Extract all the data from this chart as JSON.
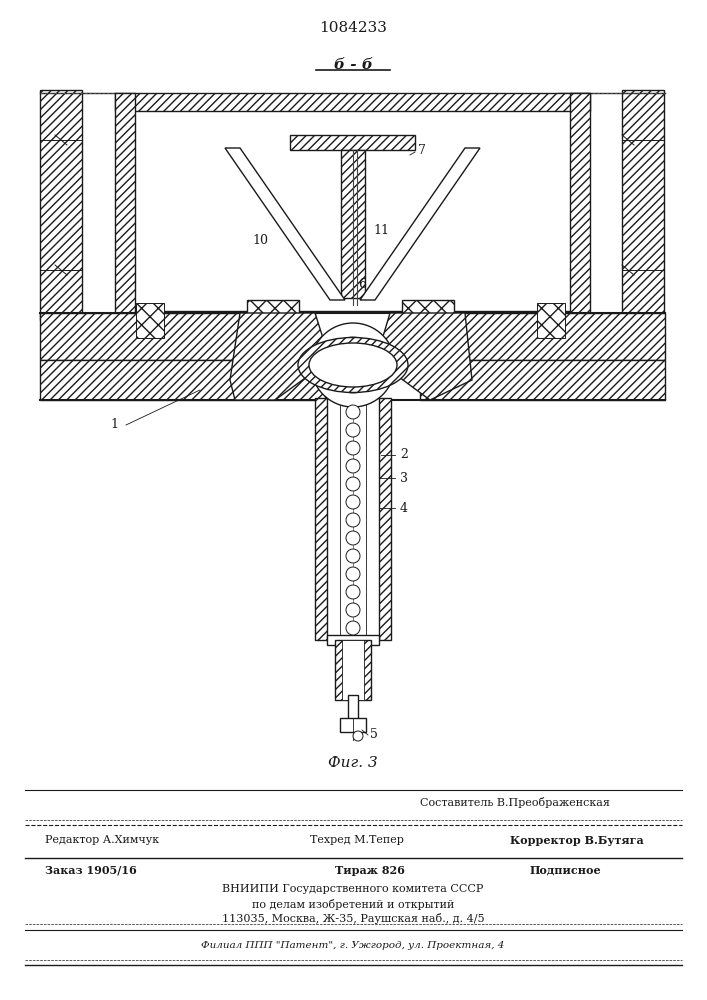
{
  "patent_number": "1084233",
  "section_label": "б - б",
  "fig_label": "Фиг. 3",
  "line_color": "#1a1a1a",
  "bg_color": "#ffffff",
  "footer": {
    "sestavitel": "Составитель В.Преображенская",
    "redaktor": "Редактор А.Химчук",
    "tehred": "Техред М.Тепер",
    "korrektor": "Корректор В.Бутяга",
    "zakaz": "Заказ 1905/16",
    "tirazh": "Тираж 826",
    "podpisnoe": "Подписное",
    "vniipи": "ВНИИПИ Государственного комитета СССР",
    "podelam": "по делам изобретений и открытий",
    "address": "113035, Москва, Ж-35, Раушская наб., д. 4/5",
    "filial": "Филиал ППП \"Патент\", г. Ужгород, ул. Проектная, 4"
  }
}
